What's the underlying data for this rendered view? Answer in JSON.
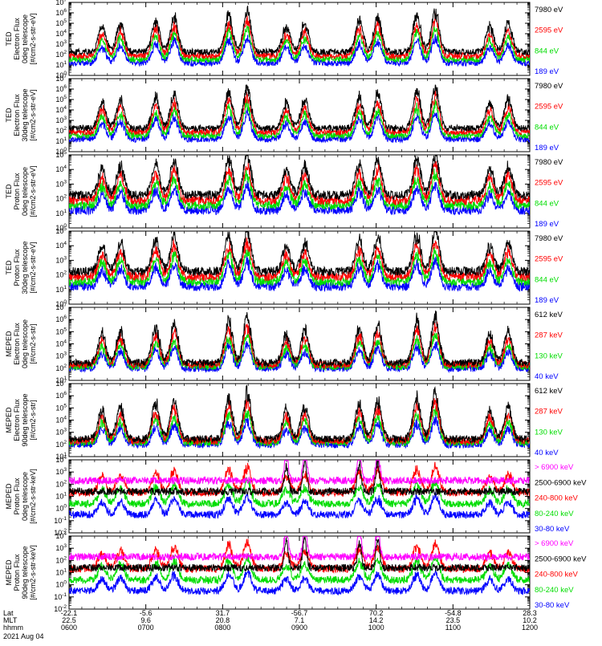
{
  "panels": [
    {
      "ylabel": [
        "TED",
        "Electron Flux",
        "0deg telescope",
        "[#/cm2-s-str-eV]"
      ],
      "y_exp_min": 0,
      "y_exp_max": 7,
      "legend": [
        {
          "label": "7980 eV",
          "color": "#000000"
        },
        {
          "label": "2595 eV",
          "color": "#ff0000"
        },
        {
          "label": "844 eV",
          "color": "#00dd00"
        },
        {
          "label": "189 eV",
          "color": "#0000ff"
        }
      ]
    },
    {
      "ylabel": [
        "TED",
        "Electron Flux",
        "30deg telescope",
        "[#/cm2-s-str-eV]"
      ],
      "y_exp_min": 0,
      "y_exp_max": 7,
      "legend": [
        {
          "label": "7980 eV",
          "color": "#000000"
        },
        {
          "label": "2595 eV",
          "color": "#ff0000"
        },
        {
          "label": "844 eV",
          "color": "#00dd00"
        },
        {
          "label": "189 eV",
          "color": "#0000ff"
        }
      ]
    },
    {
      "ylabel": [
        "TED",
        "Proton Flux",
        "0deg telescope",
        "[#/cm2-s-str-eV]"
      ],
      "y_exp_min": 0,
      "y_exp_max": 5,
      "legend": [
        {
          "label": "7980 eV",
          "color": "#000000"
        },
        {
          "label": "2595 eV",
          "color": "#ff0000"
        },
        {
          "label": "844 eV",
          "color": "#00dd00"
        },
        {
          "label": "189 eV",
          "color": "#0000ff"
        }
      ]
    },
    {
      "ylabel": [
        "TED",
        "Proton Flux",
        "30deg telescope",
        "[#/cm2-s-str-eV]"
      ],
      "y_exp_min": 0,
      "y_exp_max": 5,
      "legend": [
        {
          "label": "7980 eV",
          "color": "#000000"
        },
        {
          "label": "2595 eV",
          "color": "#ff0000"
        },
        {
          "label": "844 eV",
          "color": "#00dd00"
        },
        {
          "label": "189 eV",
          "color": "#0000ff"
        }
      ]
    },
    {
      "ylabel": [
        "MEPED",
        "Electron Flux",
        "0deg telescope",
        "[#/cm2-s-str]"
      ],
      "y_exp_min": 1,
      "y_exp_max": 7,
      "legend": [
        {
          "label": "612 keV",
          "color": "#000000"
        },
        {
          "label": "287 keV",
          "color": "#ff0000"
        },
        {
          "label": "130 keV",
          "color": "#00dd00"
        },
        {
          "label": "40 keV",
          "color": "#0000ff"
        }
      ]
    },
    {
      "ylabel": [
        "MEPED",
        "Electron Flux",
        "90deg telescope",
        "[#/cm2-s-str]"
      ],
      "y_exp_min": 1,
      "y_exp_max": 7,
      "legend": [
        {
          "label": "612 keV",
          "color": "#000000"
        },
        {
          "label": "287 keV",
          "color": "#ff0000"
        },
        {
          "label": "130 keV",
          "color": "#00dd00"
        },
        {
          "label": "40 keV",
          "color": "#0000ff"
        }
      ]
    },
    {
      "ylabel": [
        "MEPED",
        "Proton Flux",
        "0deg telescope",
        "[#/cm2-s-str-keV]"
      ],
      "y_exp_min": -2,
      "y_exp_max": 4,
      "legend": [
        {
          "label": "> 6900 keV",
          "color": "#ff00ff"
        },
        {
          "label": "2500-6900 keV",
          "color": "#000000"
        },
        {
          "label": "240-800 keV",
          "color": "#ff0000"
        },
        {
          "label": "80-240 keV",
          "color": "#00dd00"
        },
        {
          "label": "30-80 keV",
          "color": "#0000ff"
        }
      ]
    },
    {
      "ylabel": [
        "MEPED",
        "Proton Flux",
        "90deg telescope",
        "[#/cm2-s-str-keV]"
      ],
      "y_exp_min": -2,
      "y_exp_max": 4,
      "legend": [
        {
          "label": "> 6900 keV",
          "color": "#ff00ff"
        },
        {
          "label": "2500-6900 keV",
          "color": "#000000"
        },
        {
          "label": "240-800 keV",
          "color": "#ff0000"
        },
        {
          "label": "80-240 keV",
          "color": "#00dd00"
        },
        {
          "label": "30-80 keV",
          "color": "#0000ff"
        }
      ]
    }
  ],
  "xaxis": {
    "row_labels": [
      "Lat",
      "MLT",
      "hhmm"
    ],
    "ticks": [
      {
        "lat": "-22.1",
        "mlt": "22.5",
        "hhmm": "0600"
      },
      {
        "lat": "-5.6",
        "mlt": "9.6",
        "hhmm": "0700"
      },
      {
        "lat": "31.7",
        "mlt": "20.8",
        "hhmm": "0800"
      },
      {
        "lat": "-56.7",
        "mlt": "7.1",
        "hhmm": "0900"
      },
      {
        "lat": "70.2",
        "mlt": "14.2",
        "hhmm": "1000"
      },
      {
        "lat": "-54.8",
        "mlt": "23.5",
        "hhmm": "1100"
      },
      {
        "lat": "28.3",
        "mlt": "10.2",
        "hhmm": "1200"
      }
    ],
    "date": "2021 Aug 04"
  },
  "chart_data": {
    "type": "line",
    "x_range_hours": [
      6,
      12
    ],
    "y_scale": "log",
    "pass_centers_hours": [
      6.55,
      7.25,
      8.2,
      8.95,
      9.9,
      10.65,
      11.6
    ]
  }
}
